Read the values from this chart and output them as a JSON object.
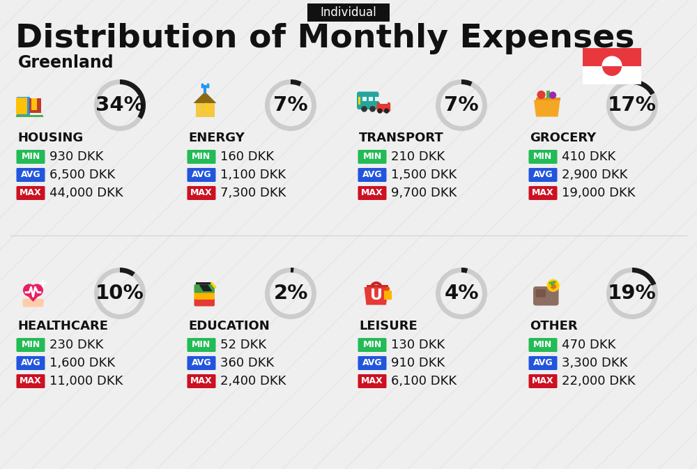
{
  "title": "Distribution of Monthly Expenses",
  "subtitle": "Greenland",
  "tag": "Individual",
  "bg_color": "#efefef",
  "categories": [
    {
      "name": "HOUSING",
      "pct": 34,
      "min": "930 DKK",
      "avg": "6,500 DKK",
      "max": "44,000 DKK",
      "row": 0,
      "col": 0
    },
    {
      "name": "ENERGY",
      "pct": 7,
      "min": "160 DKK",
      "avg": "1,100 DKK",
      "max": "7,300 DKK",
      "row": 0,
      "col": 1
    },
    {
      "name": "TRANSPORT",
      "pct": 7,
      "min": "210 DKK",
      "avg": "1,500 DKK",
      "max": "9,700 DKK",
      "row": 0,
      "col": 2
    },
    {
      "name": "GROCERY",
      "pct": 17,
      "min": "410 DKK",
      "avg": "2,900 DKK",
      "max": "19,000 DKK",
      "row": 0,
      "col": 3
    },
    {
      "name": "HEALTHCARE",
      "pct": 10,
      "min": "230 DKK",
      "avg": "1,600 DKK",
      "max": "11,000 DKK",
      "row": 1,
      "col": 0
    },
    {
      "name": "EDUCATION",
      "pct": 2,
      "min": "52 DKK",
      "avg": "360 DKK",
      "max": "2,400 DKK",
      "row": 1,
      "col": 1
    },
    {
      "name": "LEISURE",
      "pct": 4,
      "min": "130 DKK",
      "avg": "910 DKK",
      "max": "6,100 DKK",
      "row": 1,
      "col": 2
    },
    {
      "name": "OTHER",
      "pct": 19,
      "min": "470 DKK",
      "avg": "3,300 DKK",
      "max": "22,000 DKK",
      "row": 1,
      "col": 3
    }
  ],
  "min_color": "#22bb55",
  "avg_color": "#2255dd",
  "max_color": "#cc1122",
  "donut_filled": "#1a1a1a",
  "donut_empty": "#cccccc",
  "stripe_color": "#e0e0e0",
  "title_fontsize": 34,
  "subtitle_fontsize": 17,
  "cat_fontsize": 13,
  "val_fontsize": 13,
  "pct_fontsize": 21,
  "tag_fontsize": 12,
  "badge_fontsize": 9
}
